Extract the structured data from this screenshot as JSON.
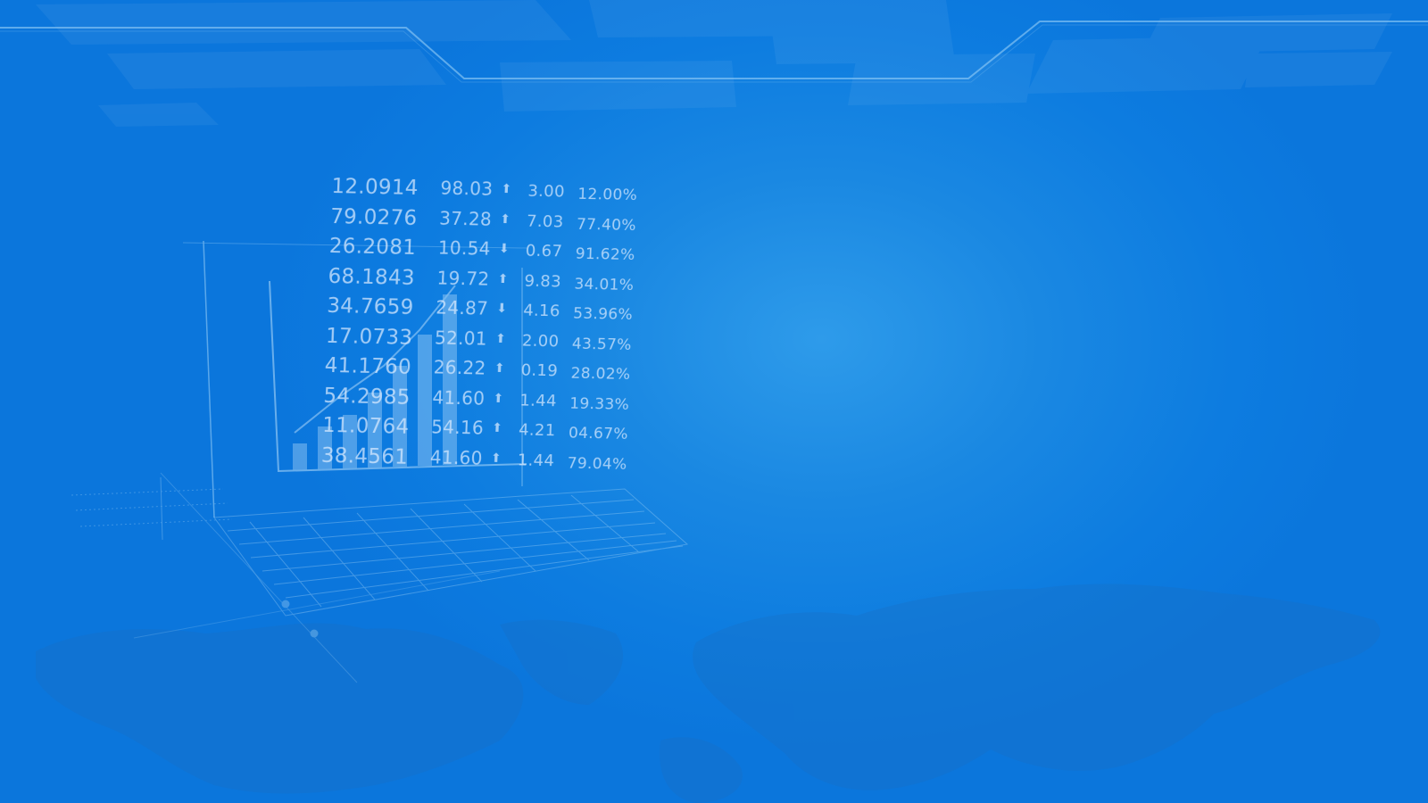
{
  "background": {
    "base_color": "#0b76dc",
    "glow_color": "#2e9bea",
    "line_color": "#6fb8f2"
  },
  "ticker": {
    "rows": [
      {
        "price": "12.0914",
        "value": "98.03",
        "direction": "up",
        "arrow": "⬆",
        "change": "3.00",
        "percent": "12.00%"
      },
      {
        "price": "79.0276",
        "value": "37.28",
        "direction": "up",
        "arrow": "⬆",
        "change": "7.03",
        "percent": "77.40%"
      },
      {
        "price": "26.2081",
        "value": "10.54",
        "direction": "down",
        "arrow": "⬇",
        "change": "0.67",
        "percent": "91.62%"
      },
      {
        "price": "68.1843",
        "value": "19.72",
        "direction": "up",
        "arrow": "⬆",
        "change": "9.83",
        "percent": "34.01%"
      },
      {
        "price": "34.7659",
        "value": "24.87",
        "direction": "down",
        "arrow": "⬇",
        "change": "4.16",
        "percent": "53.96%"
      },
      {
        "price": "17.0733",
        "value": "52.01",
        "direction": "up",
        "arrow": "⬆",
        "change": "2.00",
        "percent": "43.57%"
      },
      {
        "price": "41.1760",
        "value": "26.22",
        "direction": "up",
        "arrow": "⬆",
        "change": "0.19",
        "percent": "28.02%"
      },
      {
        "price": "54.2985",
        "value": "41.60",
        "direction": "up",
        "arrow": "⬆",
        "change": "1.44",
        "percent": "19.33%"
      },
      {
        "price": "11.0764",
        "value": "54.16",
        "direction": "up",
        "arrow": "⬆",
        "change": "4.21",
        "percent": "04.67%"
      },
      {
        "price": "38.4561",
        "value": "41.60",
        "direction": "up",
        "arrow": "⬆",
        "change": "1.44",
        "percent": "79.04%"
      }
    ]
  },
  "decor": {
    "bar_chart_icon": "bar-chart-icon",
    "laptop_icon": "laptop-keyboard-icon",
    "world_map_icon": "world-map-icon",
    "circuit_lines_icon": "circuit-lines-icon"
  }
}
